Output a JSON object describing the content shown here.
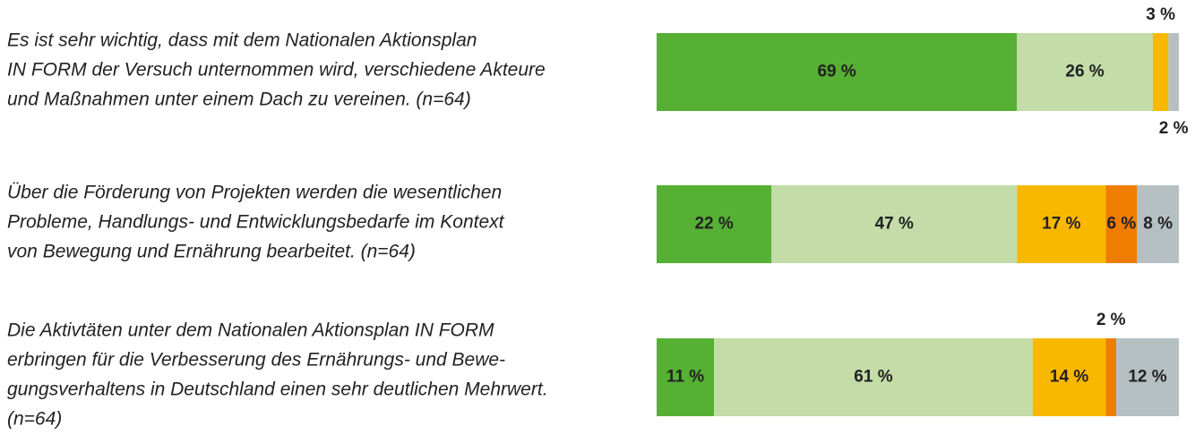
{
  "chart_data": {
    "type": "bar",
    "orientation": "horizontal",
    "stacked": true,
    "categories": [
      [
        "Es ist sehr wichtig, dass mit dem Nationalen Aktionsplan",
        "IN FORM der Versuch unternommen wird, verschiedene Akteure",
        "und Maßnahmen unter einem Dach zu vereinen. (n=64)"
      ],
      [
        "Über die Förderung von Projekten werden die wesentlichen",
        "Probleme, Handlungs- und Entwicklungsbedarfe im Kontext",
        "von Bewegung und Ernährung bearbeitet. (n=64)"
      ],
      [
        "Die Aktivtäten unter dem Nationalen Aktionsplan IN FORM",
        "erbringen für die Verbesserung des Ernährungs- und Bewe-",
        "gungsverhaltens in Deutschland einen sehr deutlichen Mehrwert.",
        "(n=64)"
      ]
    ],
    "xlim": [
      0,
      100
    ],
    "series": [
      {
        "color": "#55b033",
        "values": [
          69,
          22,
          11
        ],
        "value_labels": [
          "69 %",
          "22 %",
          "11 %"
        ]
      },
      {
        "color": "#c3dca8",
        "values": [
          26,
          47,
          61
        ],
        "value_labels": [
          "26 %",
          "47 %",
          "61 %"
        ]
      },
      {
        "color": "#f9b800",
        "values": [
          3,
          17,
          14
        ],
        "value_labels": [
          "3 %",
          "17 %",
          "14 %"
        ]
      },
      {
        "color": "#ee7d00",
        "values": [
          null,
          6,
          2
        ],
        "value_labels": [
          null,
          "6 %",
          "2 %"
        ]
      },
      {
        "color": "#b6c0c3",
        "values": [
          2,
          8,
          12
        ],
        "value_labels": [
          "2 %",
          "8 %",
          "12 %"
        ]
      }
    ]
  }
}
